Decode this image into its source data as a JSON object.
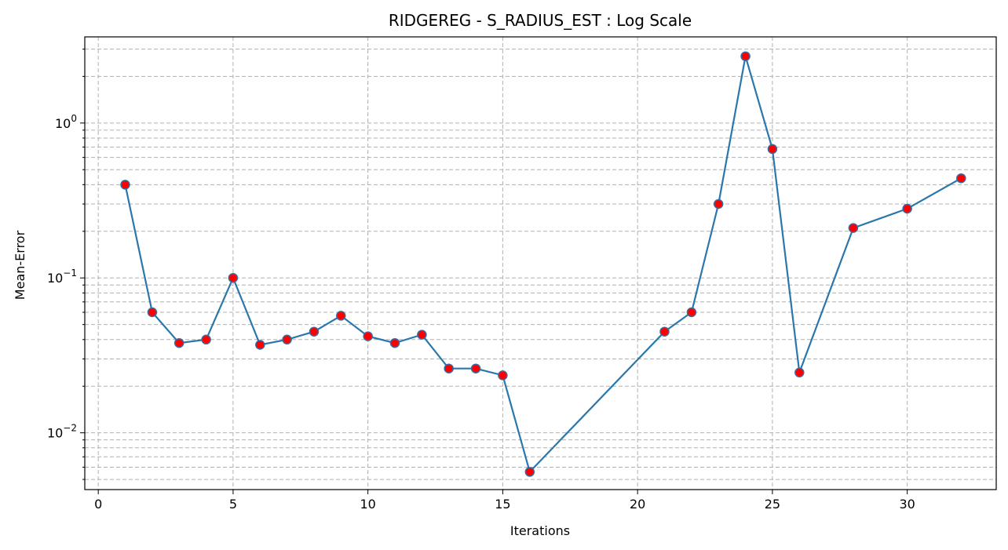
{
  "chart_data": {
    "type": "line",
    "title": "RIDGEREG - S_RADIUS_EST : Log Scale",
    "xlabel": "Iterations",
    "ylabel": "Mean-Error",
    "yscale": "log",
    "xlim": [
      -0.5,
      33.3
    ],
    "ylim": [
      0.0043,
      3.6
    ],
    "grid": true,
    "x_ticks": [
      0,
      5,
      10,
      15,
      20,
      25,
      30
    ],
    "x_tick_labels": [
      "0",
      "5",
      "10",
      "15",
      "20",
      "25",
      "30"
    ],
    "y_major_ticks": [
      0.01,
      0.1,
      1
    ],
    "y_major_tick_labels": [
      {
        "base": "10",
        "exp": "−2"
      },
      {
        "base": "10",
        "exp": "−1"
      },
      {
        "base": "10",
        "exp": "0"
      }
    ],
    "y_minor_ticks": [
      0.005,
      0.006,
      0.007,
      0.008,
      0.009,
      0.02,
      0.03,
      0.04,
      0.05,
      0.06,
      0.07,
      0.08,
      0.09,
      0.2,
      0.3,
      0.4,
      0.5,
      0.6,
      0.7,
      0.8,
      0.9,
      2,
      3
    ],
    "line_color": "#2a77ac",
    "marker_color": "#ff0000",
    "marker_edge_color": "#3b6aa0",
    "series": [
      {
        "x": [
          1,
          2,
          3,
          4,
          5,
          6,
          7,
          8,
          9,
          10,
          11,
          12,
          13,
          14,
          15,
          16,
          21,
          22,
          23,
          24,
          25,
          26,
          28,
          30,
          32
        ],
        "y": [
          0.4,
          0.06,
          0.038,
          0.04,
          0.1,
          0.037,
          0.04,
          0.045,
          0.057,
          0.042,
          0.038,
          0.043,
          0.026,
          0.026,
          0.0235,
          0.0056,
          0.045,
          0.06,
          0.3,
          2.7,
          0.68,
          0.0245,
          0.21,
          0.28,
          0.44
        ]
      }
    ]
  }
}
